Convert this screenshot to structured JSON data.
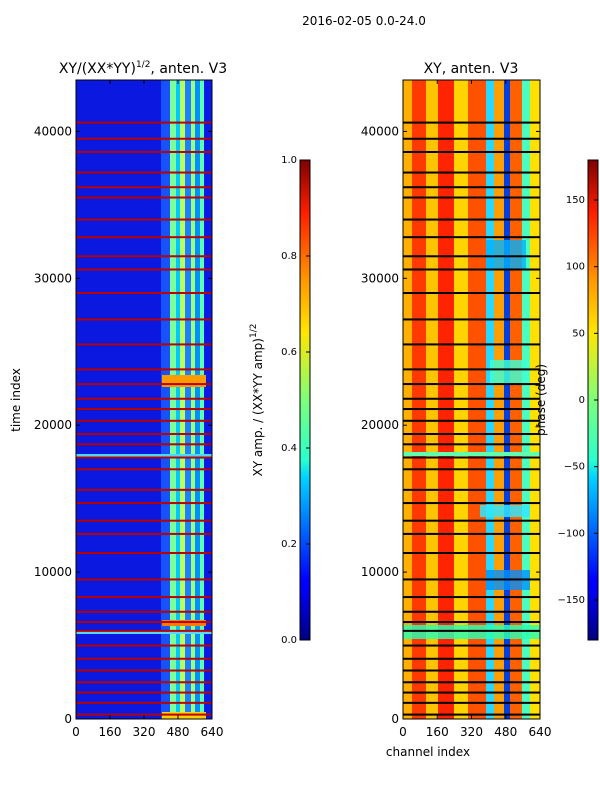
{
  "figure": {
    "title": "2016-02-05 0.0-24.0"
  },
  "chart_data": [
    {
      "type": "heatmap",
      "title": "XY/(XX*YY)",
      "title_exp": "1/2",
      "title_suffix": ", anten. V3",
      "xlabel": "",
      "ylabel": "time index",
      "xlim": [
        0,
        640
      ],
      "ylim": [
        0,
        43500
      ],
      "xticks": [
        0,
        160,
        320,
        480,
        640
      ],
      "xtick_labels": [
        "0",
        "160",
        "320",
        "480",
        "640"
      ],
      "yticks": [
        0,
        10000,
        20000,
        30000,
        40000
      ],
      "ytick_labels": [
        "0",
        "10000",
        "20000",
        "30000",
        "40000"
      ],
      "colormap": "jet",
      "colorbar": {
        "label": "XY amp. / (XX*YY amp)",
        "label_exp": "1/2",
        "range": [
          0.0,
          1.0
        ],
        "ticks": [
          0.0,
          0.2,
          0.4,
          0.6,
          0.8,
          1.0
        ],
        "tick_labels": [
          "0.0",
          "0.2",
          "0.4",
          "0.6",
          "0.8",
          "1.0"
        ]
      },
      "flagged_rows": [
        300,
        1100,
        1800,
        2500,
        3300,
        4100,
        5000,
        6000,
        6600,
        7300,
        8300,
        9500,
        11300,
        12600,
        13500,
        14700,
        15600,
        17000,
        17800,
        18700,
        19400,
        20300,
        21100,
        21800,
        22800,
        23800,
        25500,
        27200,
        29000,
        30600,
        31500,
        32800,
        34000,
        35500,
        36200,
        37200,
        38600,
        39500,
        40600
      ]
    },
    {
      "type": "heatmap",
      "title": "XY, anten. V3",
      "xlabel": "channel index",
      "ylabel": "",
      "xlim": [
        0,
        640
      ],
      "ylim": [
        0,
        43500
      ],
      "xticks": [
        0,
        160,
        320,
        480,
        640
      ],
      "xtick_labels": [
        "0",
        "160",
        "320",
        "480",
        "640"
      ],
      "yticks": [
        0,
        10000,
        20000,
        30000,
        40000
      ],
      "ytick_labels": [
        "0",
        "10000",
        "20000",
        "30000",
        "40000"
      ],
      "colormap": "jet",
      "colorbar": {
        "label": "phase (deg)",
        "range": [
          -180,
          180
        ],
        "ticks": [
          -150,
          -100,
          -50,
          0,
          50,
          100,
          150
        ],
        "tick_labels": [
          "−150",
          "−100",
          "−50",
          "0",
          "50",
          "100",
          "150"
        ]
      },
      "flagged_rows": [
        300,
        1100,
        1800,
        2500,
        3300,
        4100,
        5000,
        6000,
        6600,
        7300,
        8300,
        9500,
        11300,
        12600,
        13500,
        14700,
        15600,
        17000,
        17800,
        18700,
        19400,
        20300,
        21100,
        21800,
        22800,
        23800,
        25500,
        27200,
        29000,
        30600,
        31500,
        32800,
        34000,
        35500,
        36200,
        37200,
        38600,
        39500,
        40600
      ]
    }
  ]
}
